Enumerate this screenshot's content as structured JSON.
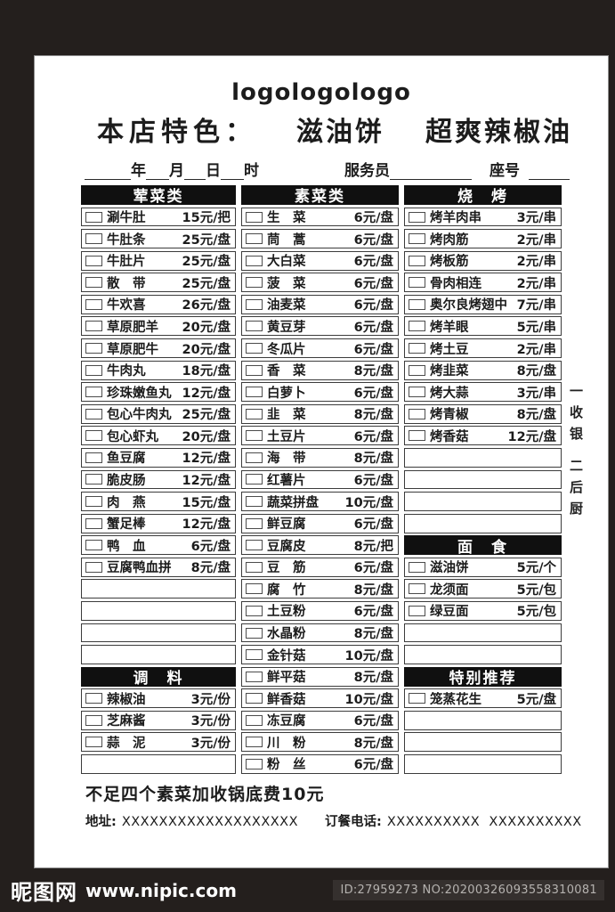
{
  "colors": {
    "frame": "#241f1d",
    "section_header_bg": "#101010",
    "page": "#ffffff"
  },
  "header": {
    "logo": "logologologo",
    "feature_label": "本店特色：",
    "feature_1": "滋油饼",
    "feature_2": "超爽辣椒油"
  },
  "date_line": {
    "year": "年",
    "month": "月",
    "day": "日",
    "hour": "时",
    "waiter": "服务员",
    "seat": "座号"
  },
  "menu": {
    "columns": [
      [
        {
          "t": "h",
          "label": "荤菜类"
        },
        {
          "t": "i",
          "name": "涮牛肚",
          "price": "15元/把"
        },
        {
          "t": "i",
          "name": "牛肚条",
          "price": "25元/盘"
        },
        {
          "t": "i",
          "name": "牛肚片",
          "price": "25元/盘"
        },
        {
          "t": "i",
          "name": "散　带",
          "price": "25元/盘"
        },
        {
          "t": "i",
          "name": "牛欢喜",
          "price": "26元/盘"
        },
        {
          "t": "i",
          "name": "草原肥羊",
          "price": "20元/盘"
        },
        {
          "t": "i",
          "name": "草原肥牛",
          "price": "20元/盘"
        },
        {
          "t": "i",
          "name": "牛肉丸",
          "price": "18元/盘"
        },
        {
          "t": "i",
          "name": "珍珠嫩鱼丸",
          "price": "12元/盘"
        },
        {
          "t": "i",
          "name": "包心牛肉丸",
          "price": "25元/盘"
        },
        {
          "t": "i",
          "name": "包心虾丸",
          "price": "20元/盘"
        },
        {
          "t": "i",
          "name": "鱼豆腐",
          "price": "12元/盘"
        },
        {
          "t": "i",
          "name": "脆皮肠",
          "price": "12元/盘"
        },
        {
          "t": "i",
          "name": "肉　燕",
          "price": "15元/盘"
        },
        {
          "t": "i",
          "name": "蟹足棒",
          "price": "12元/盘"
        },
        {
          "t": "i",
          "name": "鸭　血",
          "price": "6元/盘"
        },
        {
          "t": "i",
          "name": "豆腐鸭血拼",
          "price": "8元/盘"
        },
        {
          "t": "e"
        },
        {
          "t": "e"
        },
        {
          "t": "e"
        },
        {
          "t": "e"
        },
        {
          "t": "h",
          "label": "调　料"
        },
        {
          "t": "i",
          "name": "辣椒油",
          "price": "3元/份"
        },
        {
          "t": "i",
          "name": "芝麻酱",
          "price": "3元/份"
        },
        {
          "t": "i",
          "name": "蒜　泥",
          "price": "3元/份"
        },
        {
          "t": "e"
        }
      ],
      [
        {
          "t": "h",
          "label": "素菜类"
        },
        {
          "t": "i",
          "name": "生　菜",
          "price": "6元/盘"
        },
        {
          "t": "i",
          "name": "茼　蒿",
          "price": "6元/盘"
        },
        {
          "t": "i",
          "name": "大白菜",
          "price": "6元/盘"
        },
        {
          "t": "i",
          "name": "菠　菜",
          "price": "6元/盘"
        },
        {
          "t": "i",
          "name": "油麦菜",
          "price": "6元/盘"
        },
        {
          "t": "i",
          "name": "黄豆芽",
          "price": "6元/盘"
        },
        {
          "t": "i",
          "name": "冬瓜片",
          "price": "6元/盘"
        },
        {
          "t": "i",
          "name": "香　菜",
          "price": "8元/盘"
        },
        {
          "t": "i",
          "name": "白萝卜",
          "price": "6元/盘"
        },
        {
          "t": "i",
          "name": "韭　菜",
          "price": "8元/盘"
        },
        {
          "t": "i",
          "name": "土豆片",
          "price": "6元/盘"
        },
        {
          "t": "i",
          "name": "海　带",
          "price": "8元/盘"
        },
        {
          "t": "i",
          "name": "红薯片",
          "price": "6元/盘"
        },
        {
          "t": "i",
          "name": "蔬菜拼盘",
          "price": "10元/盘"
        },
        {
          "t": "i",
          "name": "鲜豆腐",
          "price": "6元/盘"
        },
        {
          "t": "i",
          "name": "豆腐皮",
          "price": "8元/把"
        },
        {
          "t": "i",
          "name": "豆　筋",
          "price": "6元/盘"
        },
        {
          "t": "i",
          "name": "腐　竹",
          "price": "8元/盘"
        },
        {
          "t": "i",
          "name": "土豆粉",
          "price": "6元/盘"
        },
        {
          "t": "i",
          "name": "水晶粉",
          "price": "8元/盘"
        },
        {
          "t": "i",
          "name": "金针菇",
          "price": "10元/盘"
        },
        {
          "t": "i",
          "name": "鲜平菇",
          "price": "8元/盘"
        },
        {
          "t": "i",
          "name": "鲜香菇",
          "price": "10元/盘"
        },
        {
          "t": "i",
          "name": "冻豆腐",
          "price": "6元/盘"
        },
        {
          "t": "i",
          "name": "川　粉",
          "price": "8元/盘"
        },
        {
          "t": "i",
          "name": "粉　丝",
          "price": "6元/盘"
        }
      ],
      [
        {
          "t": "h",
          "label": "烧　烤"
        },
        {
          "t": "i",
          "name": "烤羊肉串",
          "price": "3元/串"
        },
        {
          "t": "i",
          "name": "烤肉筋",
          "price": "2元/串"
        },
        {
          "t": "i",
          "name": "烤板筋",
          "price": "2元/串"
        },
        {
          "t": "i",
          "name": "骨肉相连",
          "price": "2元/串"
        },
        {
          "t": "i",
          "name": "奥尔良烤翅中",
          "price": "7元/串"
        },
        {
          "t": "i",
          "name": "烤羊眼",
          "price": "5元/串"
        },
        {
          "t": "i",
          "name": "烤土豆",
          "price": "2元/串"
        },
        {
          "t": "i",
          "name": "烤韭菜",
          "price": "8元/盘"
        },
        {
          "t": "i",
          "name": "烤大蒜",
          "price": "3元/串"
        },
        {
          "t": "i",
          "name": "烤青椒",
          "price": "8元/盘"
        },
        {
          "t": "i",
          "name": "烤香菇",
          "price": "12元/盘"
        },
        {
          "t": "e"
        },
        {
          "t": "e"
        },
        {
          "t": "e"
        },
        {
          "t": "e"
        },
        {
          "t": "h",
          "label": "面　食"
        },
        {
          "t": "i",
          "name": "滋油饼",
          "price": "5元/个"
        },
        {
          "t": "i",
          "name": "龙须面",
          "price": "5元/包"
        },
        {
          "t": "i",
          "name": "绿豆面",
          "price": "5元/包"
        },
        {
          "t": "e"
        },
        {
          "t": "e"
        },
        {
          "t": "h",
          "label": "特别推荐"
        },
        {
          "t": "i",
          "name": "笼蒸花生",
          "price": "5元/盘",
          "bold": true
        },
        {
          "t": "e"
        },
        {
          "t": "e"
        },
        {
          "t": "e"
        }
      ]
    ]
  },
  "side_notes": [
    "一收银",
    "二后厨"
  ],
  "footer": {
    "note": "不足四个素菜加收锅底费10元",
    "address_label": "地址:",
    "address_value": "XXXXXXXXXXXXXXXXXXX",
    "phone_label": "订餐电话:",
    "phone_value": "XXXXXXXXXX  XXXXXXXXXX"
  },
  "watermark": {
    "site": "昵图网",
    "url": "www.nipic.com",
    "id_no": "ID:27959273 NO:20200326093558310081"
  }
}
